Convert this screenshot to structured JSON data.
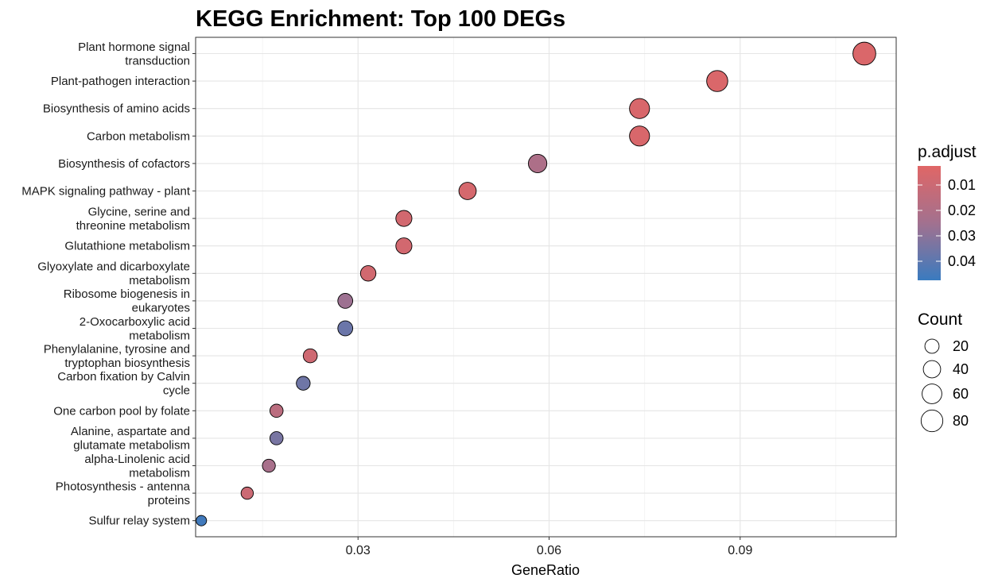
{
  "chart_data": {
    "type": "scatter",
    "title": "KEGG Enrichment: Top 100 DEGs",
    "xlabel": "GeneRatio",
    "ylabel": "",
    "xlim": [
      0.0045,
      0.1145
    ],
    "xticks": [
      0.03,
      0.06,
      0.09
    ],
    "xtick_labels": [
      "0.03",
      "0.06",
      "0.09"
    ],
    "grid": true,
    "points": [
      {
        "term": "Plant hormone signal\ntransduction",
        "x": 0.1095,
        "count": 92,
        "p_adjust": 0.0045
      },
      {
        "term": "Plant-pathogen interaction",
        "x": 0.0864,
        "count": 73,
        "p_adjust": 0.0048
      },
      {
        "term": "Biosynthesis of amino acids",
        "x": 0.0742,
        "count": 63,
        "p_adjust": 0.0055
      },
      {
        "term": "Carbon metabolism",
        "x": 0.0742,
        "count": 63,
        "p_adjust": 0.0055
      },
      {
        "term": "Biosynthesis of cofactors",
        "x": 0.0582,
        "count": 49,
        "p_adjust": 0.021
      },
      {
        "term": "MAPK signaling pathway - plant",
        "x": 0.0472,
        "count": 40,
        "p_adjust": 0.0065
      },
      {
        "term": "Glycine, serine and\nthreonine metabolism",
        "x": 0.0372,
        "count": 31,
        "p_adjust": 0.0075
      },
      {
        "term": "Glutathione metabolism",
        "x": 0.0372,
        "count": 31,
        "p_adjust": 0.0075
      },
      {
        "term": "Glyoxylate and dicarboxylate\nmetabolism",
        "x": 0.0316,
        "count": 27,
        "p_adjust": 0.008
      },
      {
        "term": "Ribosome biogenesis in\neukaryotes",
        "x": 0.028,
        "count": 24,
        "p_adjust": 0.026
      },
      {
        "term": "2-Oxocarboxylic acid\nmetabolism",
        "x": 0.028,
        "count": 24,
        "p_adjust": 0.037
      },
      {
        "term": "Phenylalanine, tyrosine and\ntryptophan biosynthesis",
        "x": 0.0225,
        "count": 19,
        "p_adjust": 0.009
      },
      {
        "term": "Carbon fixation by Calvin\ncycle",
        "x": 0.0214,
        "count": 18,
        "p_adjust": 0.036
      },
      {
        "term": "One carbon pool by folate",
        "x": 0.0172,
        "count": 15,
        "p_adjust": 0.016
      },
      {
        "term": "Alanine, aspartate and\nglutamate metabolism",
        "x": 0.0172,
        "count": 15,
        "p_adjust": 0.034
      },
      {
        "term": "alpha-Linolenic acid\nmetabolism",
        "x": 0.016,
        "count": 14,
        "p_adjust": 0.023
      },
      {
        "term": "Photosynthesis - antenna\nproteins",
        "x": 0.0126,
        "count": 11,
        "p_adjust": 0.01
      },
      {
        "term": "Sulfur relay system",
        "x": 0.0054,
        "count": 5,
        "p_adjust": 0.046
      }
    ],
    "color_legend": {
      "title": "p.adjust",
      "ticks": [
        0.01,
        0.02,
        0.03,
        0.04
      ],
      "tick_labels": [
        "0.01",
        "0.02",
        "0.03",
        "0.04"
      ],
      "range": [
        0.0025,
        0.0475
      ],
      "low_color": "#e06666",
      "mid_color": "#a2718f",
      "high_color": "#3a7bbf"
    },
    "size_legend": {
      "title": "Count",
      "values": [
        20,
        40,
        60,
        80
      ],
      "labels": [
        "20",
        "40",
        "60",
        "80"
      ]
    },
    "legend_position": "right"
  }
}
